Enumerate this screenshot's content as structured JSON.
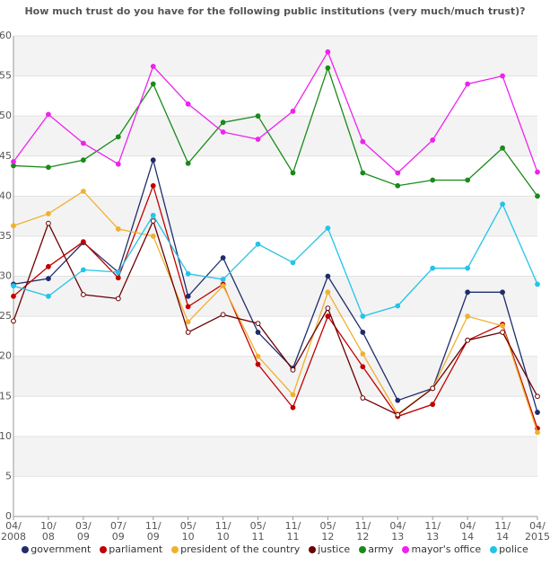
{
  "chart_data": {
    "type": "line",
    "title": "How much trust do you have for the following public institutions (very much/much trust)?",
    "categories": [
      "04/\n2008",
      "10/\n08",
      "03/\n09",
      "07/\n09",
      "11/\n09",
      "05/\n10",
      "11/\n10",
      "05/\n11",
      "11/\n11",
      "05/\n12",
      "11/\n12",
      "04/\n13",
      "11/\n13",
      "04/\n14",
      "11/\n14",
      "04/\n2015"
    ],
    "ylim": [
      0,
      60
    ],
    "yticks": [
      0,
      5,
      10,
      15,
      20,
      25,
      30,
      35,
      40,
      45,
      50,
      55,
      60
    ],
    "grid": true,
    "legend": "bottom",
    "series": [
      {
        "name": "government",
        "color": "#1f2d6b",
        "values": [
          29,
          29.7,
          34.2,
          30.5,
          44.5,
          27.5,
          32.3,
          23,
          18.5,
          30,
          23,
          14.5,
          16,
          28,
          28,
          13
        ]
      },
      {
        "name": "parliament",
        "color": "#c00000",
        "values": [
          27.5,
          31.2,
          34.3,
          29.8,
          41.3,
          26.2,
          29,
          19,
          13.6,
          25,
          18.7,
          12.5,
          14,
          22,
          24,
          11
        ]
      },
      {
        "name": "president of the country",
        "color": "#f0b030",
        "values": [
          36.3,
          37.8,
          40.6,
          35.9,
          35,
          24.3,
          28.8,
          20,
          15.2,
          28,
          20.3,
          12.8,
          16,
          25,
          23.8,
          10.5
        ]
      },
      {
        "name": "justice",
        "color": "#6b0000",
        "hollow": true,
        "values": [
          24.4,
          36.6,
          27.7,
          27.2,
          36.9,
          23,
          25.2,
          24.1,
          18.3,
          26,
          14.8,
          12.7,
          16,
          22,
          23,
          15
        ]
      },
      {
        "name": "army",
        "color": "#1a8a1a",
        "values": [
          43.8,
          43.6,
          44.5,
          47.4,
          54,
          44.1,
          49.2,
          50,
          42.9,
          56,
          42.9,
          41.3,
          42,
          42,
          46,
          40
        ]
      },
      {
        "name": "mayor's office",
        "color": "#ee22ee",
        "values": [
          44.3,
          50.2,
          46.6,
          44,
          56.2,
          51.5,
          48,
          47.1,
          50.6,
          58,
          46.8,
          42.9,
          47,
          54,
          55,
          43
        ]
      },
      {
        "name": "police",
        "color": "#22c4e8",
        "values": [
          28.8,
          27.5,
          30.8,
          30.5,
          37.6,
          30.3,
          29.6,
          34,
          31.7,
          36,
          25,
          26.3,
          31,
          31,
          39,
          29
        ]
      }
    ]
  }
}
